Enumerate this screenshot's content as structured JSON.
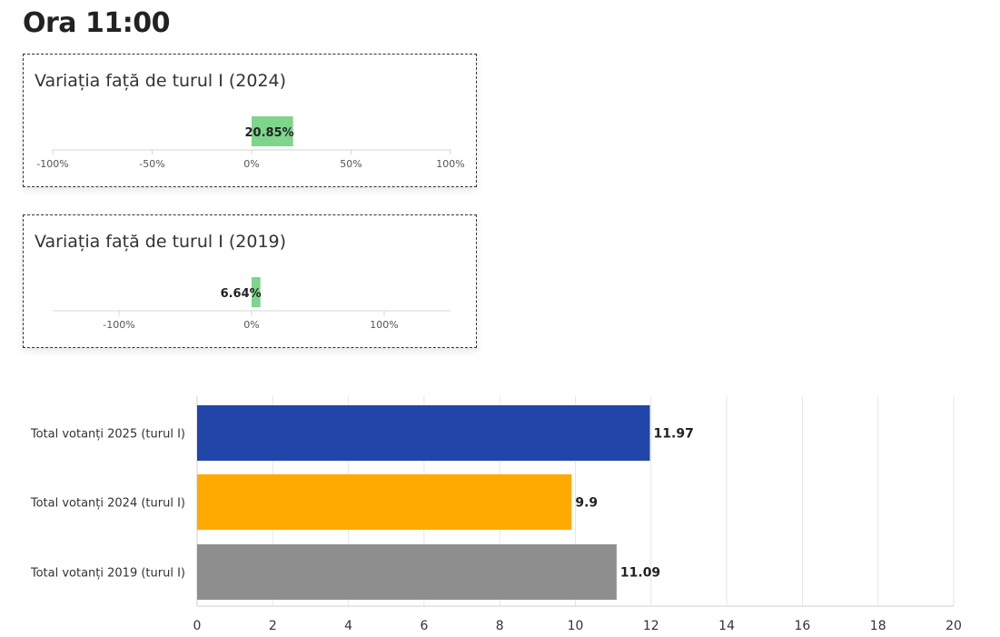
{
  "page": {
    "title": "Ora 11:00"
  },
  "chart_data": [
    {
      "type": "bar",
      "orientation": "horizontal",
      "title": "Variația față de turul I (2024)",
      "categories": [
        ""
      ],
      "values": [
        20.85
      ],
      "value_labels": [
        "20.85%"
      ],
      "xlim": [
        -100,
        100
      ],
      "ticks": [
        -100,
        -50,
        0,
        50,
        100
      ],
      "tick_labels": [
        "-100%",
        "-50%",
        "0%",
        "50%",
        "100%"
      ],
      "colors": {
        "bar": "#7ed58c"
      }
    },
    {
      "type": "bar",
      "orientation": "horizontal",
      "title": "Variația față de turul I (2019)",
      "categories": [
        ""
      ],
      "values": [
        6.64
      ],
      "value_labels": [
        "6.64%"
      ],
      "xlim": [
        -150,
        150
      ],
      "ticks": [
        -100,
        0,
        100
      ],
      "tick_labels": [
        "-100%",
        "0%",
        "100%"
      ],
      "colors": {
        "bar": "#7ed58c"
      }
    },
    {
      "type": "bar",
      "orientation": "horizontal",
      "title": "",
      "categories": [
        "Total votanți 2025 (turul I)",
        "Total votanți 2024 (turul I)",
        "Total votanți 2019 (turul I)"
      ],
      "values": [
        11.97,
        9.9,
        11.09
      ],
      "value_labels": [
        "11.97",
        "9.9",
        "11.09"
      ],
      "colors": [
        "#2146a8",
        "#ffaa00",
        "#8e8e8e"
      ],
      "xlim": [
        0,
        20
      ],
      "ticks": [
        0,
        2,
        4,
        6,
        8,
        10,
        12,
        14,
        16,
        18,
        20
      ],
      "tick_labels": [
        "0",
        "2",
        "4",
        "6",
        "8",
        "10",
        "12",
        "14",
        "16",
        "18",
        "20"
      ],
      "grid": true,
      "xlabel": "",
      "ylabel": ""
    }
  ]
}
